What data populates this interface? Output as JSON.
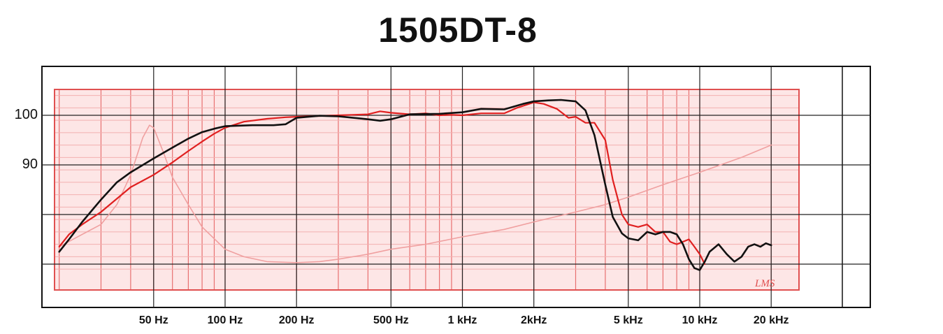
{
  "chart_data": {
    "type": "line",
    "title": "1505DT-8",
    "x_scale": "log",
    "xlim": [
      20,
      25000
    ],
    "ylim": [
      70,
      105
    ],
    "x_ticks": [
      {
        "value": 50,
        "label": "50 Hz"
      },
      {
        "value": 100,
        "label": "100 Hz"
      },
      {
        "value": 200,
        "label": "200 Hz"
      },
      {
        "value": 500,
        "label": "500 Hz"
      },
      {
        "value": 1000,
        "label": "1 kHz"
      },
      {
        "value": 2000,
        "label": "2kHz"
      },
      {
        "value": 5000,
        "label": "5 kHz"
      },
      {
        "value": 10000,
        "label": "10 kHz"
      },
      {
        "value": 20000,
        "label": "20 kHz"
      }
    ],
    "y_ticks": [
      {
        "value": 100,
        "label": "100"
      },
      {
        "value": 90,
        "label": "90"
      }
    ],
    "grid": true,
    "colors": {
      "black": "#111111",
      "red": "#e02020",
      "impedance": "#f0a0a0",
      "grid_red": "#e05050",
      "sheet": "#fde6e6"
    },
    "series": [
      {
        "color": "#111111",
        "x": [
          20,
          22,
          25,
          30,
          35,
          40,
          50,
          60,
          70,
          80,
          90,
          100,
          130,
          160,
          180,
          200,
          250,
          300,
          400,
          450,
          500,
          600,
          800,
          1000,
          1200,
          1500,
          1800,
          2000,
          2300,
          2600,
          3000,
          3300,
          3600,
          4000,
          4300,
          4700,
          5000,
          5500,
          6000,
          6500,
          7000,
          7500,
          8000,
          8500,
          9000,
          9500,
          10000,
          10500,
          11000,
          12000,
          13000,
          14000,
          15000,
          16000,
          17000,
          18000,
          19000,
          20000
        ],
        "y": [
          72.5,
          75,
          78.5,
          83,
          86.5,
          88.5,
          91.3,
          93.5,
          95.3,
          96.6,
          97.3,
          97.8,
          98.0,
          98.0,
          98.2,
          99.5,
          99.9,
          99.8,
          99.2,
          98.9,
          99.2,
          100.2,
          100.3,
          100.6,
          101.3,
          101.2,
          102.3,
          102.8,
          103.0,
          103.1,
          102.8,
          101.0,
          96.0,
          86.0,
          79.5,
          76.2,
          75.2,
          74.8,
          76.5,
          76.0,
          76.5,
          76.5,
          76.0,
          74.0,
          71.0,
          69.2,
          68.8,
          70.5,
          72.5,
          74.0,
          72.0,
          70.5,
          71.5,
          73.5,
          74.0,
          73.5,
          74.2,
          73.8
        ]
      },
      {
        "color": "#e02020",
        "x": [
          20,
          22,
          25,
          30,
          40,
          50,
          60,
          70,
          80,
          90,
          100,
          120,
          150,
          180,
          200,
          300,
          400,
          450,
          500,
          600,
          700,
          800,
          900,
          1000,
          1200,
          1500,
          1700,
          2000,
          2200,
          2500,
          2800,
          3000,
          3300,
          3600,
          4000,
          4300,
          4700,
          5000,
          5500,
          6000,
          6500,
          7000,
          7500,
          8000,
          8500,
          9000,
          9500,
          10000,
          10500
        ],
        "y": [
          73.5,
          76,
          78,
          80.5,
          85.5,
          88,
          90.5,
          92.8,
          94.7,
          96.3,
          97.5,
          98.7,
          99.3,
          99.6,
          99.7,
          100.0,
          100.2,
          100.8,
          100.5,
          100.2,
          100.4,
          100.0,
          100.1,
          100.0,
          100.4,
          100.4,
          101.5,
          102.6,
          102.3,
          101.3,
          99.5,
          99.7,
          98.5,
          98.5,
          95.0,
          87.0,
          80.0,
          78.0,
          77.5,
          78.0,
          76.5,
          76.5,
          74.5,
          74.0,
          74.5,
          75.0,
          73.5,
          72.0,
          70.0
        ]
      },
      {
        "color": "#f0a0a0",
        "x": [
          20,
          25,
          30,
          35,
          40,
          45,
          48,
          50,
          55,
          60,
          70,
          80,
          100,
          120,
          150,
          200,
          250,
          300,
          400,
          500,
          700,
          1000,
          1500,
          2000,
          3000,
          4000,
          5000,
          7000,
          10000,
          15000,
          20000
        ],
        "y": [
          73.5,
          76,
          78,
          82,
          88,
          95.5,
          98.0,
          97.5,
          92.5,
          87.5,
          82,
          77.5,
          73,
          71.5,
          70.5,
          70.3,
          70.5,
          71,
          72,
          73,
          74,
          75.5,
          77,
          78.5,
          80.5,
          82,
          83.5,
          86,
          88.5,
          91.5,
          94
        ]
      }
    ]
  }
}
